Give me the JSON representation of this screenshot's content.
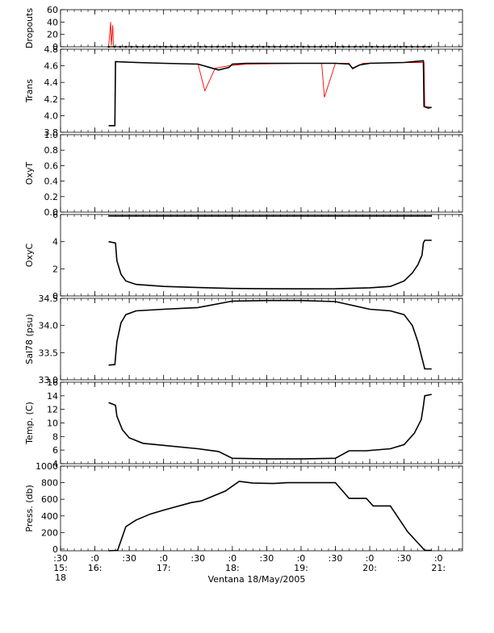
{
  "figure": {
    "xlabel": "Ventana 18/May/2005",
    "x_ticks": [
      {
        "t": 15.5,
        "top": ":30",
        "mid": "15:",
        "bot": "18"
      },
      {
        "t": 16.0,
        "top": ":0",
        "mid": "16:",
        "bot": ""
      },
      {
        "t": 16.5,
        "top": ":30",
        "mid": "",
        "bot": ""
      },
      {
        "t": 17.0,
        "top": ":0",
        "mid": "17:",
        "bot": ""
      },
      {
        "t": 17.5,
        "top": ":30",
        "mid": "",
        "bot": ""
      },
      {
        "t": 18.0,
        "top": ":0",
        "mid": "18:",
        "bot": ""
      },
      {
        "t": 18.5,
        "top": ":30",
        "mid": "",
        "bot": ""
      },
      {
        "t": 19.0,
        "top": ":0",
        "mid": "19:",
        "bot": ""
      },
      {
        "t": 19.5,
        "top": ":30",
        "mid": "",
        "bot": ""
      },
      {
        "t": 20.0,
        "top": ":0",
        "mid": "20:",
        "bot": ""
      },
      {
        "t": 20.5,
        "top": ":30",
        "mid": "",
        "bot": ""
      },
      {
        "t": 21.0,
        "top": ":0",
        "mid": "21:",
        "bot": ""
      }
    ],
    "colors": {
      "raw": "#ff0000",
      "smoothed": "#000000",
      "axes": "#000000"
    }
  },
  "chart_data": [
    {
      "type": "line",
      "ylabel": "Dropouts",
      "xlim": [
        15.5,
        21.35
      ],
      "ylim": [
        0,
        60
      ],
      "yticks": [
        {
          "v": 0,
          "label": "0"
        },
        {
          "v": 20,
          "label": "20"
        },
        {
          "v": 40,
          "label": "40"
        },
        {
          "v": 60,
          "label": "60"
        }
      ],
      "series": [
        {
          "color": "#ff0000",
          "x": [
            16.2,
            16.23,
            16.24,
            16.26,
            16.27,
            16.3,
            20.9
          ],
          "y": [
            0,
            40,
            2,
            35,
            0,
            0,
            0
          ]
        },
        {
          "color": "#000000",
          "style": "markers",
          "x_start": 16.2,
          "x_end": 20.9,
          "step": 0.0833,
          "y_const": 0
        }
      ]
    },
    {
      "type": "line",
      "ylabel": "Trans",
      "xlim": [
        15.5,
        21.35
      ],
      "ylim": [
        3.8,
        4.8
      ],
      "yticks": [
        {
          "v": 3.8,
          "label": "3.8"
        },
        {
          "v": 4.0,
          "label": "4.0"
        },
        {
          "v": 4.2,
          "label": "4.2"
        },
        {
          "v": 4.4,
          "label": "4.4"
        },
        {
          "v": 4.6,
          "label": "4.6"
        },
        {
          "v": 4.8,
          "label": "4.8"
        }
      ],
      "series": [
        {
          "color": "#ff0000",
          "x": [
            16.2,
            16.29,
            16.3,
            17.0,
            17.5,
            17.6,
            17.75,
            17.95,
            18.2,
            19.0,
            19.3,
            19.34,
            19.5,
            19.7,
            19.75,
            19.9,
            20.5,
            20.79,
            20.8,
            20.9
          ],
          "y": [
            3.88,
            3.88,
            4.65,
            4.63,
            4.62,
            4.3,
            4.57,
            4.6,
            4.62,
            4.63,
            4.63,
            4.22,
            4.63,
            4.63,
            4.56,
            4.63,
            4.64,
            4.64,
            4.11,
            4.1
          ]
        },
        {
          "color": "#000000",
          "x": [
            16.2,
            16.29,
            16.3,
            16.6,
            17.0,
            17.5,
            17.8,
            17.95,
            18.0,
            18.2,
            18.5,
            19.0,
            19.5,
            19.7,
            19.75,
            19.85,
            20.0,
            20.5,
            20.78,
            20.79,
            20.85,
            20.9
          ],
          "y": [
            3.88,
            3.88,
            4.65,
            4.64,
            4.63,
            4.62,
            4.55,
            4.58,
            4.62,
            4.63,
            4.63,
            4.63,
            4.63,
            4.62,
            4.57,
            4.61,
            4.63,
            4.64,
            4.66,
            4.11,
            4.09,
            4.1
          ]
        }
      ]
    },
    {
      "type": "line",
      "ylabel": "OxyT",
      "xlim": [
        15.5,
        21.35
      ],
      "ylim": [
        0,
        1.0
      ],
      "yticks": [
        {
          "v": 0.0,
          "label": "0.0"
        },
        {
          "v": 0.2,
          "label": "0.2"
        },
        {
          "v": 0.4,
          "label": "0.4"
        },
        {
          "v": 0.6,
          "label": "0.6"
        },
        {
          "v": 0.8,
          "label": "0.8"
        },
        {
          "v": 1.0,
          "label": "1.0"
        }
      ],
      "series": [
        {
          "color": "#000000",
          "x": [
            16.2,
            20.9
          ],
          "y": [
            -0.05,
            -0.05
          ]
        }
      ]
    },
    {
      "type": "line",
      "ylabel": "OxyC",
      "xlim": [
        15.5,
        21.35
      ],
      "ylim": [
        0,
        6
      ],
      "yticks": [
        {
          "v": 0,
          "label": "0"
        },
        {
          "v": 2,
          "label": "2"
        },
        {
          "v": 4,
          "label": "4"
        },
        {
          "v": 6,
          "label": "6"
        }
      ],
      "series": [
        {
          "color": "#ff0000",
          "x": [
            16.2,
            16.3,
            16.32,
            16.38,
            16.45,
            16.6,
            17.0,
            17.5,
            18.0,
            18.5,
            19.0,
            19.5,
            20.0,
            20.3,
            20.5,
            20.62,
            20.7,
            20.76,
            20.78,
            20.8,
            20.9
          ],
          "y": [
            4.0,
            3.9,
            2.6,
            1.6,
            1.1,
            0.85,
            0.7,
            0.62,
            0.55,
            0.53,
            0.52,
            0.53,
            0.6,
            0.7,
            1.1,
            1.7,
            2.3,
            3.0,
            3.9,
            4.1,
            4.1
          ]
        },
        {
          "color": "#000000",
          "x": [
            16.2,
            16.3,
            16.32,
            16.38,
            16.45,
            16.6,
            17.0,
            17.5,
            18.0,
            18.5,
            19.0,
            19.5,
            20.0,
            20.3,
            20.5,
            20.62,
            20.7,
            20.76,
            20.78,
            20.8,
            20.9
          ],
          "y": [
            4.0,
            3.9,
            2.6,
            1.6,
            1.1,
            0.85,
            0.7,
            0.62,
            0.55,
            0.53,
            0.52,
            0.53,
            0.6,
            0.7,
            1.1,
            1.7,
            2.3,
            3.0,
            3.9,
            4.1,
            4.1
          ]
        }
      ]
    },
    {
      "type": "line",
      "ylabel": "Sal78 (psu)",
      "xlim": [
        15.5,
        21.35
      ],
      "ylim": [
        33.0,
        34.5
      ],
      "yticks": [
        {
          "v": 33.0,
          "label": "33.0"
        },
        {
          "v": 33.5,
          "label": "33.5"
        },
        {
          "v": 34.0,
          "label": "34.0"
        },
        {
          "v": 34.5,
          "label": "34.5"
        }
      ],
      "series": [
        {
          "color": "#ff0000",
          "x": [
            16.2,
            16.29,
            16.32,
            16.38,
            16.45,
            16.6,
            17.0,
            17.5,
            18.0,
            18.5,
            19.0,
            19.5,
            20.0,
            20.3,
            20.5,
            20.62,
            20.7,
            20.76,
            20.8,
            20.9
          ],
          "y": [
            33.27,
            33.28,
            33.7,
            34.05,
            34.2,
            34.27,
            34.3,
            34.33,
            34.45,
            34.46,
            34.46,
            34.44,
            34.3,
            34.27,
            34.2,
            34.0,
            33.7,
            33.4,
            33.2,
            33.2
          ]
        },
        {
          "color": "#000000",
          "x": [
            16.2,
            16.29,
            16.32,
            16.38,
            16.45,
            16.6,
            17.0,
            17.5,
            18.0,
            18.5,
            19.0,
            19.5,
            20.0,
            20.3,
            20.5,
            20.62,
            20.7,
            20.76,
            20.8,
            20.9
          ],
          "y": [
            33.27,
            33.28,
            33.7,
            34.05,
            34.2,
            34.27,
            34.3,
            34.33,
            34.45,
            34.46,
            34.46,
            34.44,
            34.3,
            34.27,
            34.2,
            34.0,
            33.7,
            33.4,
            33.2,
            33.2
          ]
        }
      ]
    },
    {
      "type": "line",
      "ylabel": "Temp. (C)",
      "xlim": [
        15.5,
        21.35
      ],
      "ylim": [
        4,
        16
      ],
      "yticks": [
        {
          "v": 4,
          "label": "4"
        },
        {
          "v": 6,
          "label": "6"
        },
        {
          "v": 8,
          "label": "8"
        },
        {
          "v": 10,
          "label": "10"
        },
        {
          "v": 12,
          "label": "12"
        },
        {
          "v": 14,
          "label": "14"
        },
        {
          "v": 16,
          "label": "16"
        }
      ],
      "series": [
        {
          "color": "#ff0000",
          "x": [
            16.2,
            16.3,
            16.32,
            16.4,
            16.5,
            16.7,
            17.0,
            17.5,
            17.8,
            18.0,
            18.5,
            19.0,
            19.5,
            19.7,
            19.95,
            20.3,
            20.5,
            20.65,
            20.75,
            20.78,
            20.8,
            20.9
          ],
          "y": [
            13.0,
            12.6,
            11.0,
            9.0,
            7.8,
            7.0,
            6.7,
            6.2,
            5.8,
            4.8,
            4.7,
            4.7,
            4.8,
            5.9,
            5.9,
            6.2,
            6.8,
            8.5,
            10.5,
            12.5,
            14.0,
            14.2
          ]
        },
        {
          "color": "#000000",
          "x": [
            16.2,
            16.3,
            16.32,
            16.4,
            16.5,
            16.7,
            17.0,
            17.5,
            17.8,
            18.0,
            18.5,
            19.0,
            19.5,
            19.7,
            19.95,
            20.3,
            20.5,
            20.65,
            20.75,
            20.78,
            20.8,
            20.9
          ],
          "y": [
            13.0,
            12.6,
            11.0,
            9.0,
            7.8,
            7.0,
            6.7,
            6.2,
            5.8,
            4.8,
            4.7,
            4.7,
            4.8,
            5.9,
            5.9,
            6.2,
            6.8,
            8.5,
            10.5,
            12.5,
            14.0,
            14.2
          ]
        }
      ]
    },
    {
      "type": "line",
      "ylabel": "Press. (db)",
      "xlim": [
        15.5,
        21.35
      ],
      "ylim": [
        -20,
        1000
      ],
      "yticks": [
        {
          "v": 0,
          "label": "0"
        },
        {
          "v": 200,
          "label": "200"
        },
        {
          "v": 400,
          "label": "400"
        },
        {
          "v": 600,
          "label": "600"
        },
        {
          "v": 800,
          "label": "800"
        },
        {
          "v": 1000,
          "label": "1000"
        }
      ],
      "series": [
        {
          "color": "#000000",
          "x": [
            16.2,
            16.33,
            16.45,
            16.6,
            16.8,
            17.0,
            17.4,
            17.55,
            17.9,
            18.1,
            18.3,
            18.6,
            18.8,
            19.2,
            19.5,
            19.7,
            19.95,
            20.05,
            20.3,
            20.55,
            20.8,
            20.9
          ],
          "y": [
            -20,
            -15,
            270,
            350,
            420,
            470,
            560,
            580,
            700,
            815,
            795,
            790,
            800,
            800,
            800,
            610,
            610,
            520,
            520,
            210,
            -15,
            -15
          ]
        }
      ]
    }
  ]
}
